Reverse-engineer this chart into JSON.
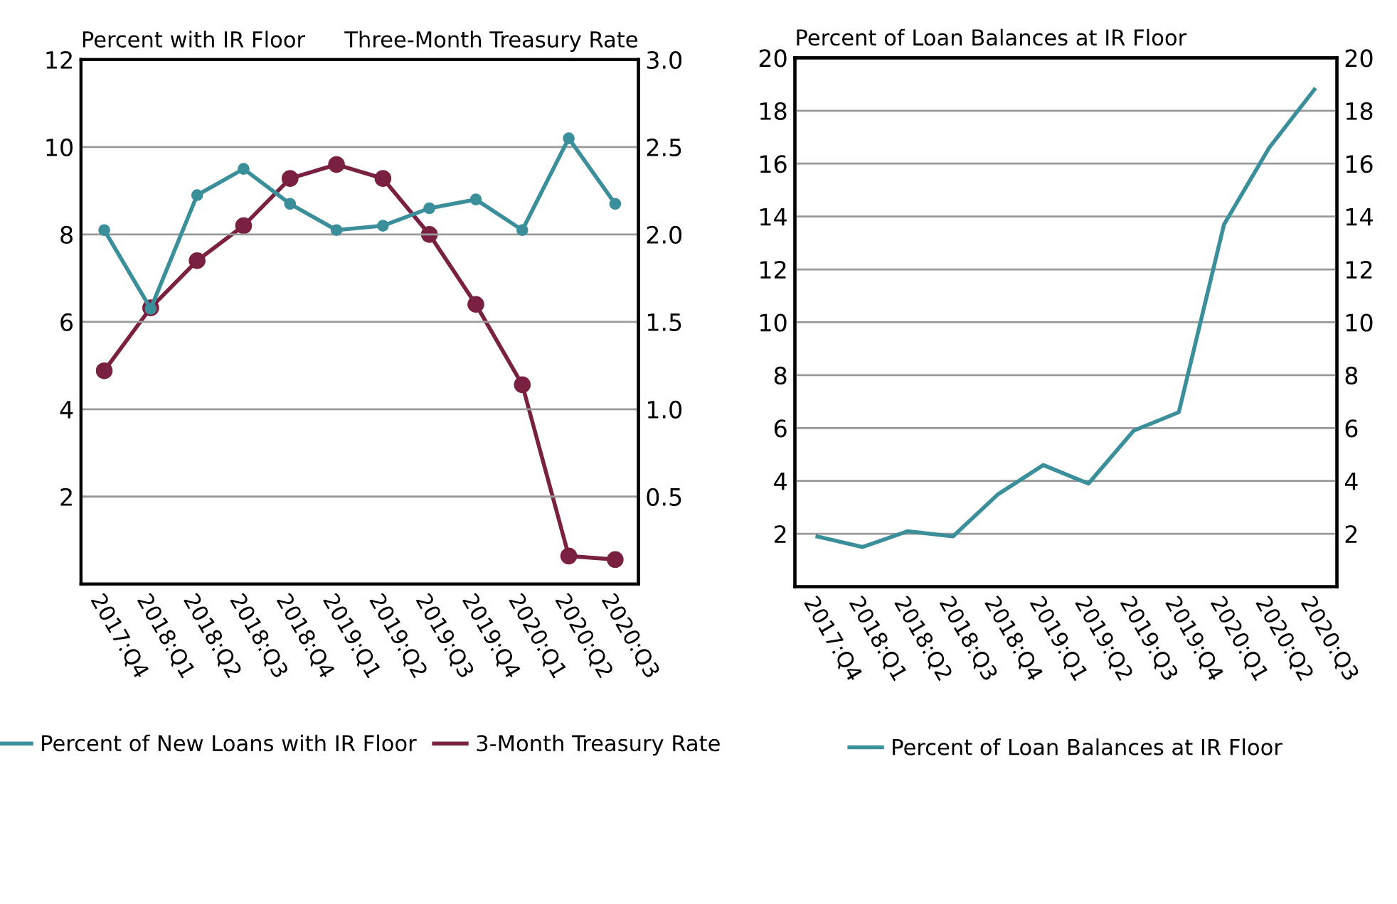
{
  "chart_data": [
    {
      "type": "line",
      "categories": [
        "2017:Q4",
        "2018:Q1",
        "2018:Q2",
        "2018:Q3",
        "2018:Q4",
        "2019:Q1",
        "2019:Q2",
        "2019:Q3",
        "2019:Q4",
        "2020:Q1",
        "2020:Q2",
        "2020:Q3"
      ],
      "ylabel": "Percent with IR Floor",
      "y2label": "Three-Month Treasury Rate",
      "series": [
        {
          "name": "Percent of New Loans with IR Floor",
          "color": "#3a8f9a",
          "values": [
            8.1,
            6.3,
            8.9,
            9.5,
            8.7,
            8.1,
            8.2,
            8.6,
            8.8,
            8.1,
            10.2,
            8.7
          ]
        },
        {
          "name": "3-Month Treasury Rate",
          "color": "#7a2040",
          "axis": "y2",
          "values": [
            1.22,
            1.58,
            1.85,
            2.05,
            2.32,
            2.4,
            2.32,
            2.0,
            1.6,
            1.14,
            0.16,
            0.14
          ]
        }
      ],
      "ylim": [
        0,
        12
      ],
      "yticks": [
        2,
        4,
        6,
        8,
        10,
        12
      ],
      "y2lim": [
        0,
        3
      ],
      "y2ticks": [
        {
          "value": 0.5,
          "label": "0.5"
        },
        {
          "value": 1.0,
          "label": "1.0"
        },
        {
          "value": 1.5,
          "label": "1.5"
        },
        {
          "value": 2.0,
          "label": "2.0"
        },
        {
          "value": 2.5,
          "label": "2.5"
        },
        {
          "value": 3.0,
          "label": "3.0"
        }
      ],
      "grid": "y",
      "legend": "bottom",
      "marker": "circle",
      "line_style": "solid"
    },
    {
      "type": "line",
      "categories": [
        "2017:Q4",
        "2018:Q1",
        "2018:Q2",
        "2018:Q3",
        "2018:Q4",
        "2019:Q1",
        "2019:Q2",
        "2019:Q3",
        "2019:Q4",
        "2020:Q1",
        "2020:Q2",
        "2020:Q3"
      ],
      "ylabel": "Percent of Loan Balances at IR Floor",
      "series": [
        {
          "name": "Percent of Loan Balances at IR Floor",
          "color": "#3a8f9a",
          "values": [
            1.9,
            1.5,
            2.1,
            1.9,
            3.5,
            4.6,
            3.9,
            5.9,
            6.6,
            13.7,
            16.6,
            18.8
          ]
        }
      ],
      "ylim": [
        0,
        20
      ],
      "yticks": [
        2,
        4,
        6,
        8,
        10,
        12,
        14,
        16,
        18,
        20
      ],
      "y2lim": [
        0,
        20
      ],
      "y2ticks": [
        2,
        4,
        6,
        8,
        10,
        12,
        14,
        16,
        18,
        20
      ],
      "grid": "y",
      "legend": "bottom",
      "line_style": "solid"
    }
  ]
}
